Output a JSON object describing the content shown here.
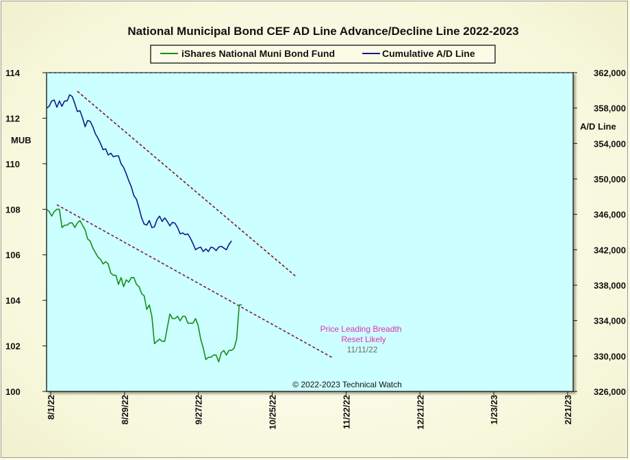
{
  "chart_data": {
    "type": "line",
    "title": "National Municipal Bond CEF AD Line Advance/Decline Line 2022-2023",
    "ylabel_left": "MUB",
    "ylabel_right": "A/D Line",
    "ylim_left": [
      100,
      114
    ],
    "ylim_right": [
      326000,
      362000
    ],
    "y_ticks_left": [
      "114",
      "112",
      "110",
      "108",
      "106",
      "104",
      "102",
      "100"
    ],
    "y_ticks_right": [
      "362,000",
      "358,000",
      "354,000",
      "350,000",
      "346,000",
      "342,000",
      "338,000",
      "334,000",
      "330,000",
      "326,000"
    ],
    "x_ticks": [
      "8/1/22",
      "8/29/22",
      "9/27/22",
      "10/25/22",
      "11/22/22",
      "12/21/22",
      "1/23/23",
      "2/21/23"
    ],
    "x_range_days": [
      0,
      205
    ],
    "grid": false,
    "legend_position": "top",
    "series": [
      {
        "name": "iShares National Muni Bond Fund",
        "axis": "left",
        "color": "#148c14",
        "values": [
          108.0,
          107.9,
          107.7,
          107.9,
          108.0,
          108.0,
          107.2,
          107.3,
          107.3,
          107.4,
          107.4,
          107.2,
          107.4,
          107.5,
          107.3,
          107.1,
          106.7,
          106.6,
          106.3,
          106.1,
          105.9,
          105.8,
          105.6,
          105.7,
          105.6,
          105.2,
          105.1,
          105.1,
          104.7,
          105.0,
          104.6,
          104.9,
          104.8,
          105.0,
          105.0,
          104.7,
          104.6,
          104.3,
          104.2,
          103.6,
          103.8,
          103.3,
          102.1,
          102.2,
          102.3,
          102.2,
          102.2,
          102.8,
          103.4,
          103.2,
          103.2,
          103.3,
          103.1,
          103.3,
          103.3,
          103.0,
          103.0,
          103.0,
          103.2,
          102.9,
          102.3,
          101.9,
          101.4,
          101.5,
          101.5,
          101.6,
          101.6,
          101.3,
          101.7,
          101.8,
          101.6,
          101.8,
          101.8,
          101.9,
          102.3,
          103.8,
          103.8
        ],
        "trendline": {
          "x": [
            4,
            111
          ],
          "y": [
            108.2,
            101.5
          ],
          "color": "#801050"
        }
      },
      {
        "name": "Cumulative A/D Line",
        "axis": "right",
        "color": "#0a1a8a",
        "values": [
          358000,
          358200,
          358800,
          358900,
          358100,
          358800,
          358200,
          358800,
          358800,
          359500,
          359300,
          358500,
          357600,
          357700,
          356900,
          355900,
          356600,
          356500,
          355900,
          355100,
          354600,
          354000,
          353300,
          353400,
          352700,
          352900,
          352500,
          352600,
          352600,
          351700,
          351300,
          350600,
          349800,
          349100,
          348100,
          347700,
          346700,
          345600,
          344900,
          344800,
          345300,
          344500,
          344600,
          345400,
          345800,
          345200,
          345600,
          345200,
          344700,
          345100,
          345000,
          344500,
          343800,
          343900,
          343700,
          343800,
          343300,
          342700,
          342000,
          342200,
          342300,
          341800,
          342100,
          341800,
          342300,
          342200,
          341900,
          342300,
          342400,
          342200,
          342000,
          342600,
          343000
        ],
        "trendline": {
          "x": [
            12,
            97
          ],
          "y": [
            359900,
            339000
          ],
          "color": "#801020"
        }
      }
    ],
    "annotations": [
      {
        "text": "Price Leading  Breadth",
        "color": "#e030b0"
      },
      {
        "text": "Reset  Likely",
        "color": "#e030b0"
      },
      {
        "text": "11/11/22",
        "color": "#6a6a6a"
      }
    ],
    "copyright": "© 2022-2023  Technical  Watch"
  }
}
